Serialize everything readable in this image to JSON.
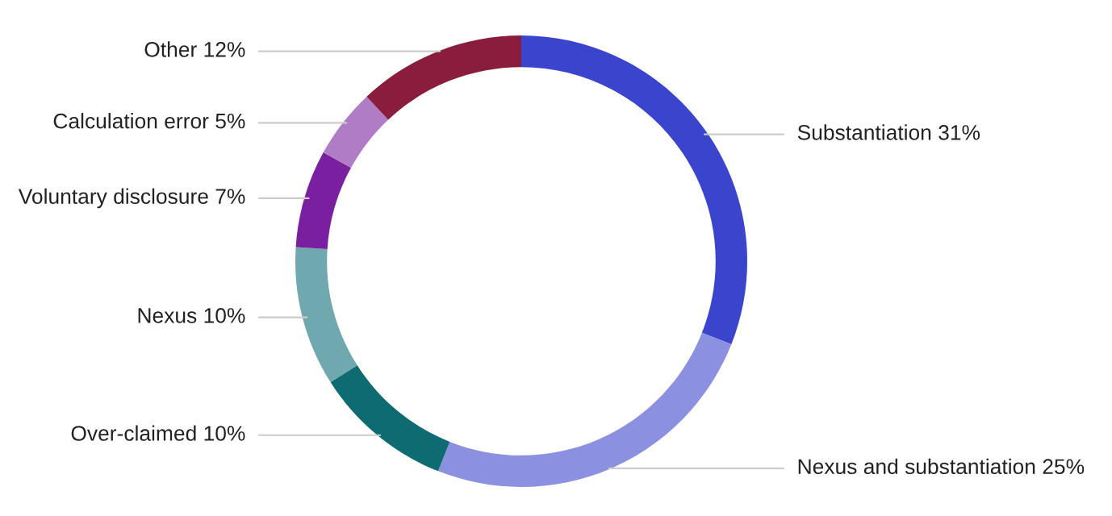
{
  "chart_data": {
    "type": "donut",
    "categories": [
      "Substantiation",
      "Nexus and substantiation",
      "Over-claimed",
      "Nexus",
      "Voluntary disclosure",
      "Calculation error",
      "Other"
    ],
    "values": [
      31,
      25,
      10,
      10,
      7,
      5,
      12
    ],
    "value_labels": [
      "31%",
      "25%",
      "10%",
      "10%",
      "7%",
      "5%",
      "12%"
    ],
    "colors": [
      "#3b44cc",
      "#8b90e0",
      "#0e6b72",
      "#6fa8ae",
      "#7a1fa0",
      "#b07cc6",
      "#8a1c3e"
    ],
    "legend": false
  }
}
